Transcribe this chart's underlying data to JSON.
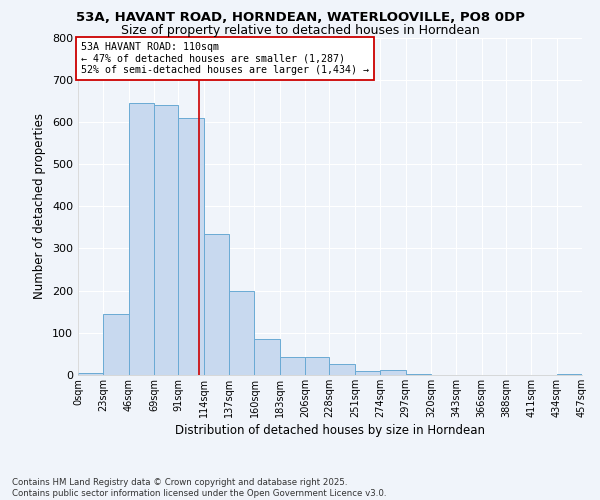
{
  "title1": "53A, HAVANT ROAD, HORNDEAN, WATERLOOVILLE, PO8 0DP",
  "title2": "Size of property relative to detached houses in Horndean",
  "xlabel": "Distribution of detached houses by size in Horndean",
  "ylabel": "Number of detached properties",
  "bar_values": [
    5,
    145,
    645,
    640,
    610,
    335,
    200,
    85,
    42,
    42,
    25,
    10,
    13,
    3,
    0,
    0,
    0,
    0,
    0,
    3
  ],
  "bin_edges": [
    0,
    23,
    46,
    69,
    91,
    114,
    137,
    160,
    183,
    206,
    228,
    251,
    274,
    297,
    320,
    343,
    366,
    388,
    411,
    434,
    457
  ],
  "x_tick_labels": [
    "0sqm",
    "23sqm",
    "46sqm",
    "69sqm",
    "91sqm",
    "114sqm",
    "137sqm",
    "160sqm",
    "183sqm",
    "206sqm",
    "228sqm",
    "251sqm",
    "274sqm",
    "297sqm",
    "320sqm",
    "343sqm",
    "366sqm",
    "388sqm",
    "411sqm",
    "434sqm",
    "457sqm"
  ],
  "bar_color": "#c8d9ef",
  "bar_edge_color": "#6aaad4",
  "vline_x": 110,
  "vline_color": "#cc0000",
  "annotation_line1": "53A HAVANT ROAD: 110sqm",
  "annotation_line2": "← 47% of detached houses are smaller (1,287)",
  "annotation_line3": "52% of semi-detached houses are larger (1,434) →",
  "annotation_box_color": "#ffffff",
  "annotation_box_edge": "#cc0000",
  "bg_color": "#f0f4fa",
  "plot_bg_color": "#f0f4fa",
  "grid_color": "#ffffff",
  "footer_text": "Contains HM Land Registry data © Crown copyright and database right 2025.\nContains public sector information licensed under the Open Government Licence v3.0.",
  "ylim": [
    0,
    800
  ],
  "yticks": [
    0,
    100,
    200,
    300,
    400,
    500,
    600,
    700,
    800
  ]
}
